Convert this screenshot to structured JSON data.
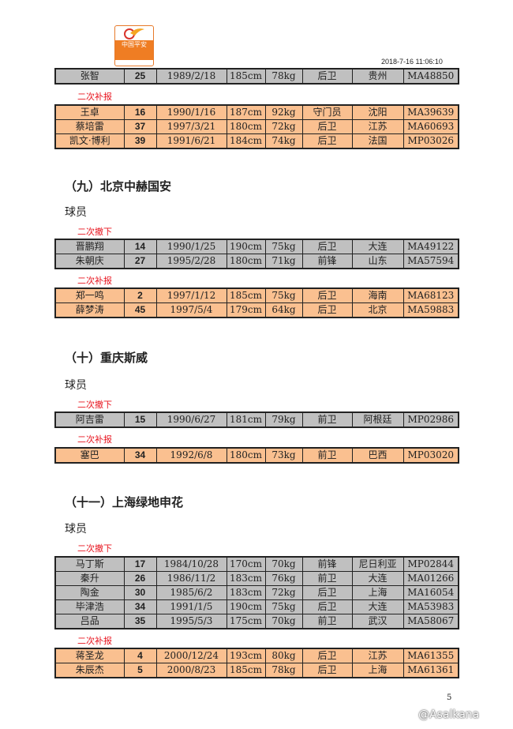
{
  "header": {
    "logo_text": "中国平安",
    "logo_sub": "CSL",
    "timestamp": "2018-7-16   11:06:10"
  },
  "tables": {
    "t0": {
      "rows": [
        [
          "张智",
          "25",
          "1989/2/18",
          "185cm",
          "78kg",
          "后卫",
          "贵州",
          "MA48850"
        ]
      ]
    },
    "t1": {
      "label": "二次补报",
      "rows": [
        [
          "王卓",
          "16",
          "1990/1/16",
          "187cm",
          "92kg",
          "守门员",
          "沈阳",
          "MA39639"
        ],
        [
          "蔡培雷",
          "37",
          "1997/3/21",
          "180cm",
          "72kg",
          "后卫",
          "江苏",
          "MA60693"
        ],
        [
          "凯文·博利",
          "39",
          "1991/6/21",
          "184cm",
          "74kg",
          "后卫",
          "法国",
          "MP03026"
        ]
      ]
    },
    "t2": {
      "label": "二次撤下",
      "rows": [
        [
          "晋鹏翔",
          "14",
          "1990/1/25",
          "190cm",
          "75kg",
          "后卫",
          "大连",
          "MA49122"
        ],
        [
          "朱朝庆",
          "27",
          "1995/2/28",
          "180cm",
          "71kg",
          "前锋",
          "山东",
          "MA57594"
        ]
      ]
    },
    "t3": {
      "label": "二次补报",
      "rows": [
        [
          "郑一鸣",
          "2",
          "1997/1/12",
          "185cm",
          "75kg",
          "后卫",
          "海南",
          "MA68123"
        ],
        [
          "薛梦涛",
          "45",
          "1997/5/4",
          "179cm",
          "64kg",
          "后卫",
          "北京",
          "MA59883"
        ]
      ]
    },
    "t4": {
      "label": "二次撤下",
      "rows": [
        [
          "阿吉雷",
          "15",
          "1990/6/27",
          "181cm",
          "79kg",
          "前卫",
          "阿根廷",
          "MP02986"
        ]
      ]
    },
    "t5": {
      "label": "二次补报",
      "rows": [
        [
          "塞巴",
          "34",
          "1992/6/8",
          "180cm",
          "73kg",
          "前卫",
          "巴西",
          "MP03020"
        ]
      ]
    },
    "t6": {
      "label": "二次撤下",
      "rows": [
        [
          "马丁斯",
          "17",
          "1984/10/28",
          "170cm",
          "70kg",
          "前锋",
          "尼日利亚",
          "MP02844"
        ],
        [
          "秦升",
          "26",
          "1986/11/2",
          "183cm",
          "76kg",
          "前卫",
          "大连",
          "MA01266"
        ],
        [
          "陶金",
          "30",
          "1985/6/2",
          "183cm",
          "72kg",
          "后卫",
          "上海",
          "MA16054"
        ],
        [
          "毕津浩",
          "34",
          "1991/1/5",
          "190cm",
          "75kg",
          "后卫",
          "大连",
          "MA53983"
        ],
        [
          "吕品",
          "35",
          "1995/5/3",
          "175cm",
          "70kg",
          "前卫",
          "武汉",
          "MA58067"
        ]
      ]
    },
    "t7": {
      "label": "二次补报",
      "rows": [
        [
          "蒋圣龙",
          "4",
          "2000/12/24",
          "193cm",
          "80kg",
          "后卫",
          "江苏",
          "MA61355"
        ],
        [
          "朱辰杰",
          "5",
          "2000/8/23",
          "185cm",
          "78kg",
          "后卫",
          "上海",
          "MA61361"
        ]
      ]
    }
  },
  "sections": [
    {
      "title": "（九）北京中赫国安",
      "sub": "球员"
    },
    {
      "title": "（十）重庆斯威",
      "sub": "球员"
    },
    {
      "title": "（十一）上海绿地申花",
      "sub": "球员"
    }
  ],
  "footer": {
    "page_number": "5",
    "watermark": "@Asalkana"
  },
  "colors": {
    "removed_row": "#c0c0c0",
    "added_row": "#fac090",
    "label_red": "#e8141e"
  }
}
